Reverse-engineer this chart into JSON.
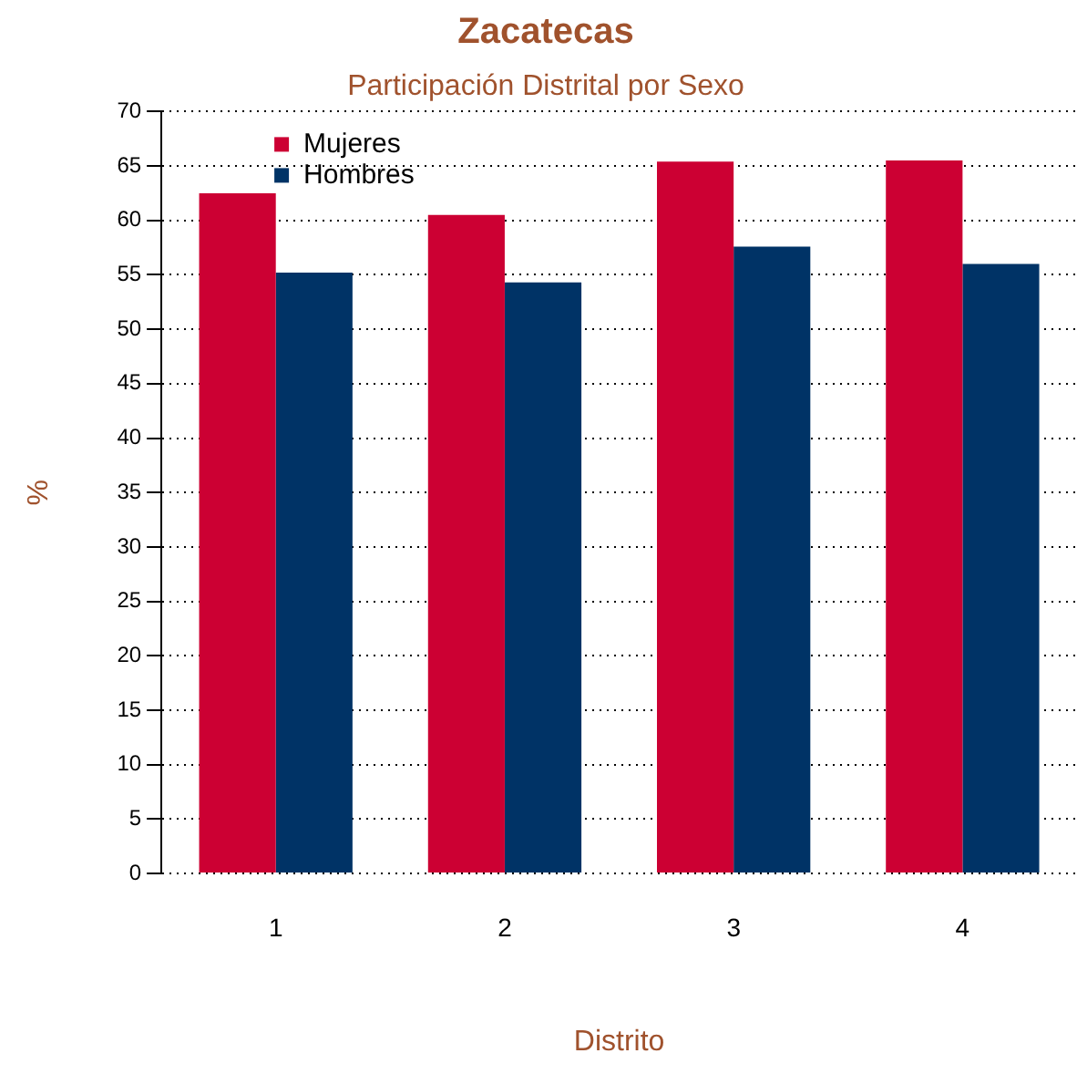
{
  "chart_data": {
    "type": "bar",
    "title": "Zacatecas",
    "subtitle": "Participación Distrital por Sexo",
    "xlabel": "Distrito",
    "ylabel": "%",
    "categories": [
      "1",
      "2",
      "3",
      "4"
    ],
    "series": [
      {
        "name": "Mujeres",
        "color": "#cc0033",
        "values": [
          62.5,
          60.5,
          65.4,
          65.5
        ]
      },
      {
        "name": "Hombres",
        "color": "#003366",
        "values": [
          55.2,
          54.3,
          57.6,
          56.0
        ]
      }
    ],
    "ylim": [
      0,
      70
    ],
    "yticks": [
      0,
      5,
      10,
      15,
      20,
      25,
      30,
      35,
      40,
      45,
      50,
      55,
      60,
      65,
      70
    ],
    "grid": "y",
    "legend": "top left"
  }
}
